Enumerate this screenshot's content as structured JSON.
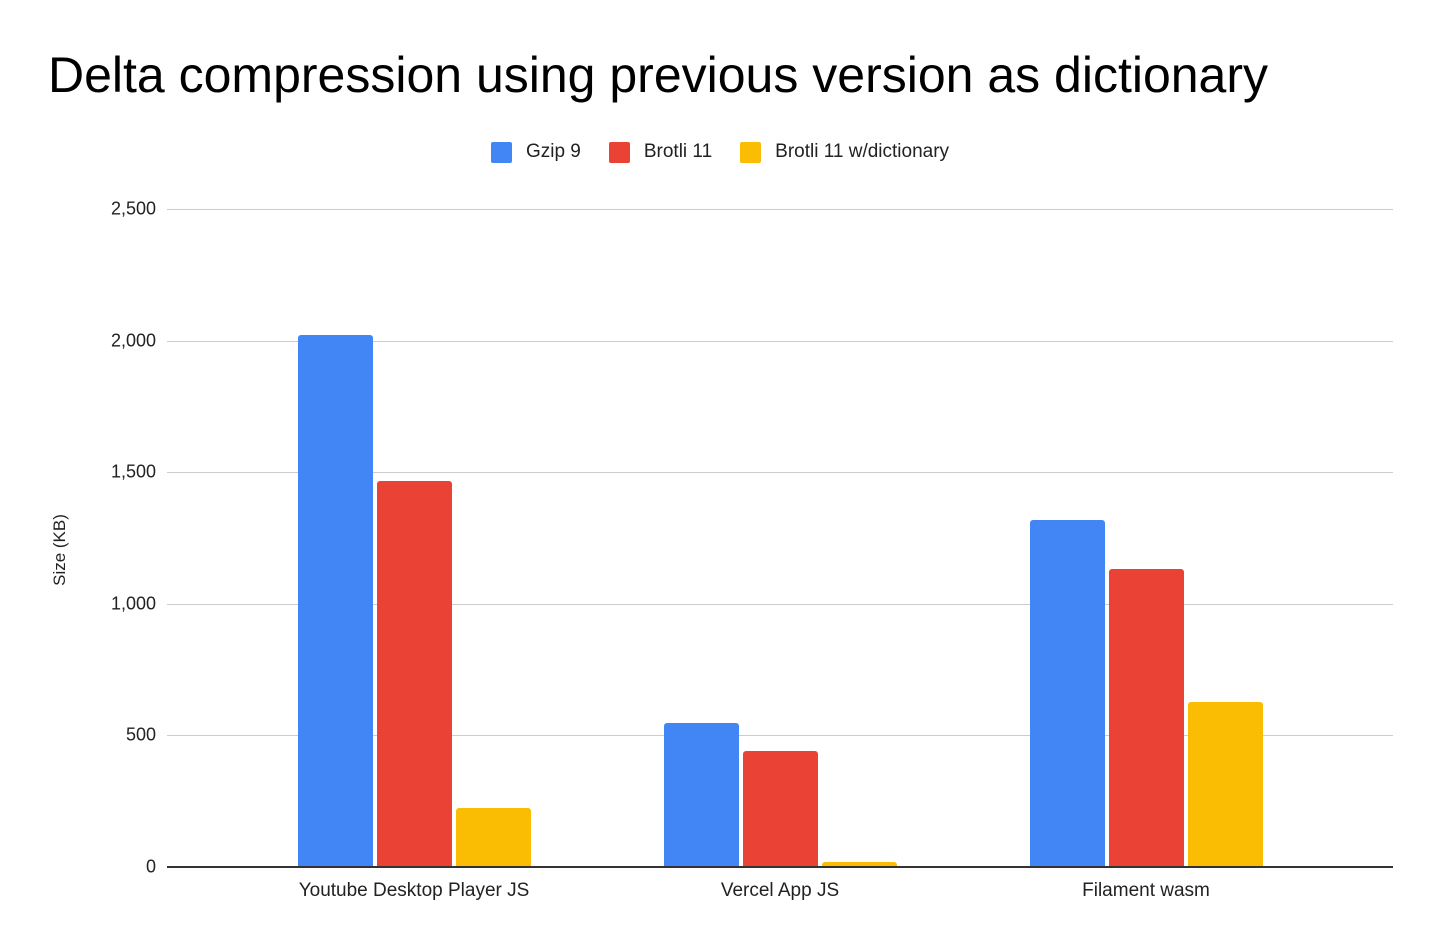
{
  "chart_data": {
    "type": "bar",
    "title": "Delta compression using previous version as dictionary",
    "xlabel": "",
    "ylabel": "Size (KB)",
    "ylim": [
      0,
      2500
    ],
    "yticks": [
      "0",
      "500",
      "1,000",
      "1,500",
      "2,000",
      "2,500"
    ],
    "grid": true,
    "legend_position": "top",
    "categories": [
      "Youtube Desktop Player JS",
      "Vercel App JS",
      "Filament wasm"
    ],
    "series": [
      {
        "name": "Gzip 9",
        "color": "#4285f4",
        "values": [
          2017,
          543,
          1315
        ]
      },
      {
        "name": "Brotli 11",
        "color": "#ea4335",
        "values": [
          1463,
          437,
          1128
        ]
      },
      {
        "name": "Brotli 11 w/dictionary",
        "color": "#fbbc04",
        "values": [
          222,
          15,
          623
        ]
      }
    ]
  }
}
